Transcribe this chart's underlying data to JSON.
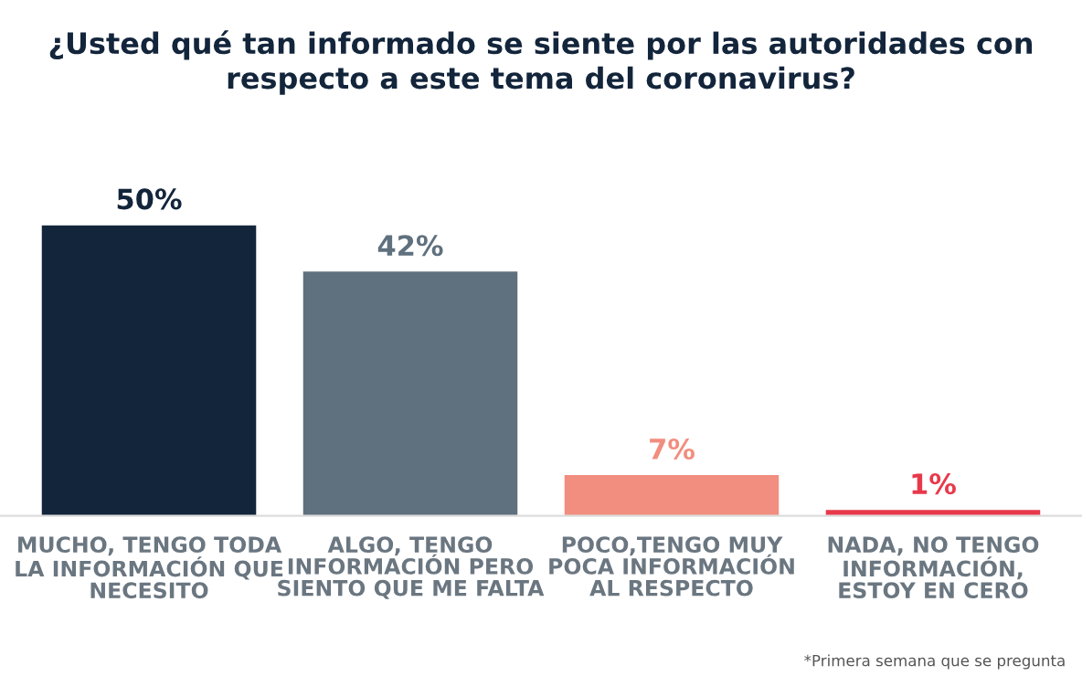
{
  "chart_data": {
    "type": "bar",
    "title": "¿Usted qué tan informado se siente por las autoridades con\nrespecto a este tema del coronavirus?",
    "categories": [
      "MUCHO, TENGO TODA\nLA INFORMACIÓN QUE\nNECESITO",
      "ALGO, TENGO\nINFORMACIÓN PERO\nSIENTO QUE ME FALTA",
      "POCO,TENGO MUY\nPOCA INFORMACIÓN\nAL RESPECTO",
      "NADA, NO TENGO\nINFORMACIÓN,\nESTOY EN CERO"
    ],
    "values": [
      50,
      42,
      7,
      1
    ],
    "colors": [
      "#13253b",
      "#5f707e",
      "#f28e7f",
      "#e8394b"
    ],
    "value_labels": [
      "50%",
      "42%",
      "7%",
      "1%"
    ],
    "annotations": [
      "*Primera semana que se pregunta"
    ],
    "grid": false,
    "legend": false
  }
}
